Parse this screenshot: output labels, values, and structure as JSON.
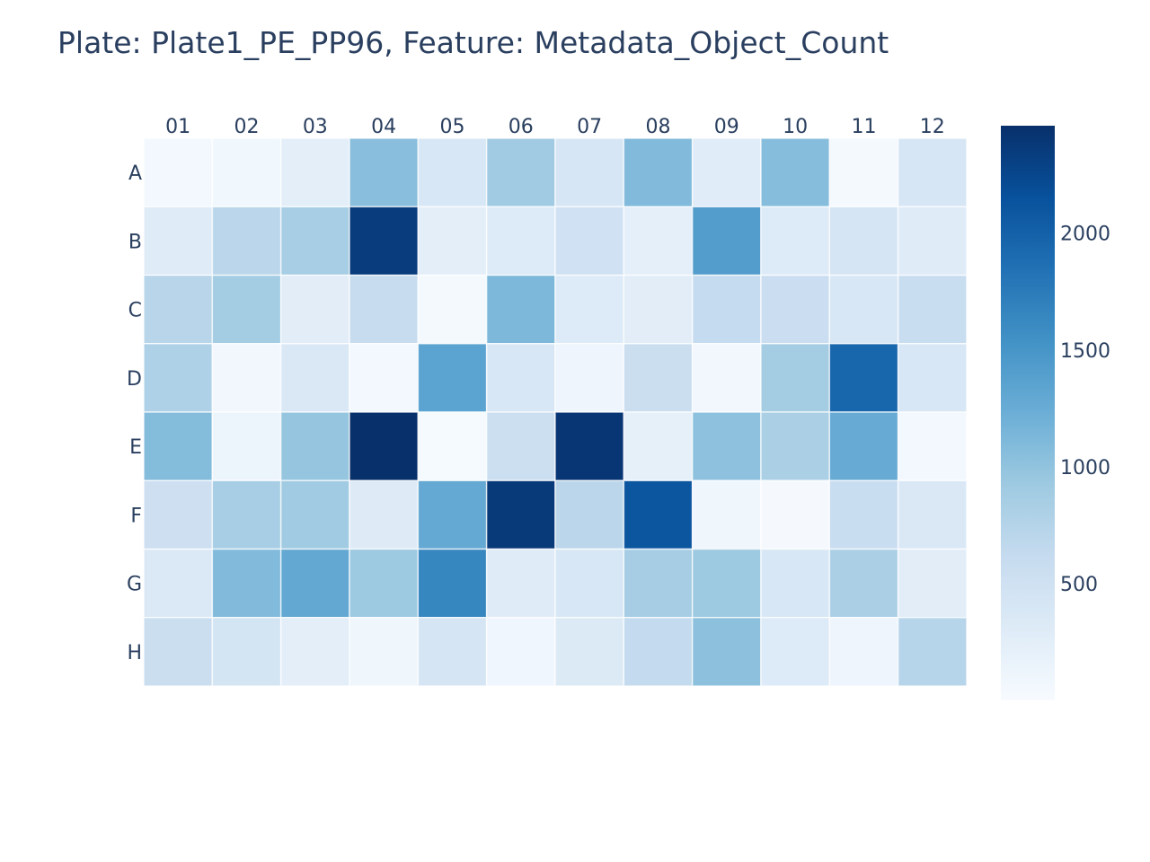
{
  "chart_data": {
    "type": "heatmap",
    "title": "Plate: Plate1_PE_PP96, Feature: Metadata_Object_Count",
    "x_categories": [
      "01",
      "02",
      "03",
      "04",
      "05",
      "06",
      "07",
      "08",
      "09",
      "10",
      "11",
      "12"
    ],
    "y_categories": [
      "A",
      "B",
      "C",
      "D",
      "E",
      "F",
      "G",
      "H"
    ],
    "values": [
      [
        60,
        80,
        250,
        1050,
        380,
        900,
        400,
        1100,
        280,
        1060,
        40,
        400
      ],
      [
        300,
        700,
        850,
        2350,
        250,
        320,
        500,
        230,
        1420,
        320,
        420,
        300
      ],
      [
        720,
        880,
        260,
        600,
        40,
        1120,
        320,
        260,
        620,
        550,
        380,
        580
      ],
      [
        800,
        70,
        360,
        60,
        1350,
        380,
        110,
        560,
        70,
        880,
        1950,
        380
      ],
      [
        1080,
        120,
        970,
        2460,
        20,
        540,
        2400,
        220,
        1020,
        820,
        1260,
        50
      ],
      [
        530,
        850,
        900,
        310,
        1280,
        2380,
        700,
        2100,
        100,
        30,
        580,
        360
      ],
      [
        350,
        1100,
        1300,
        930,
        1650,
        300,
        380,
        860,
        930,
        380,
        820,
        260
      ],
      [
        560,
        450,
        250,
        100,
        420,
        90,
        330,
        630,
        1030,
        320,
        110,
        730
      ]
    ],
    "colorscale": "Blues",
    "zmin": 0,
    "zmax": 2460,
    "colorbar_ticks": [
      500,
      1000,
      1500,
      2000
    ],
    "x_axis_side": "top",
    "grid": true
  }
}
